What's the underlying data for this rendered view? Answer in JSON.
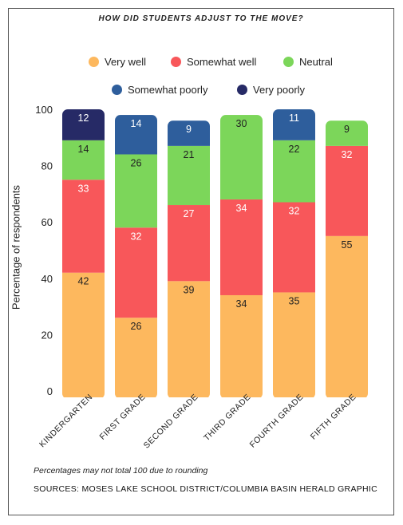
{
  "chart_data": {
    "type": "bar",
    "stacked": true,
    "title": "HOW DID STUDENTS ADJUST TO THE MOVE?",
    "ylabel": "Percentage of respondents",
    "xlabel": "",
    "ylim": [
      0,
      100
    ],
    "yticks": [
      0,
      20,
      40,
      60,
      80,
      100
    ],
    "grid": false,
    "legend_position": "top",
    "categories": [
      "KINDERGARTEN",
      "FIRST GRADE",
      "SECOND GRADE",
      "THIRD GRADE",
      "FOURTH GRADE",
      "FIFTH GRADE"
    ],
    "series": [
      {
        "name": "Very well",
        "color": "#FDB85E",
        "label_color": "#222222",
        "values": [
          42,
          26,
          39,
          34,
          35,
          55
        ]
      },
      {
        "name": "Somewhat well",
        "color": "#F8575A",
        "label_color": "#ffffff",
        "values": [
          33,
          32,
          27,
          34,
          32,
          32
        ]
      },
      {
        "name": "Neutral",
        "color": "#7CD65A",
        "label_color": "#222222",
        "values": [
          14,
          26,
          21,
          30,
          22,
          9
        ]
      },
      {
        "name": "Somewhat poorly",
        "color": "#2E5E9C",
        "label_color": "#ffffff",
        "values": [
          0,
          14,
          9,
          0,
          11,
          0
        ]
      },
      {
        "name": "Very poorly",
        "color": "#262A66",
        "label_color": "#ffffff",
        "values": [
          12,
          0,
          0,
          0,
          0,
          0
        ]
      }
    ],
    "data_labels": [
      [
        "42",
        "26",
        "39",
        "34",
        "35",
        "55"
      ],
      [
        "33",
        "32",
        "27",
        "34",
        "32",
        "32"
      ],
      [
        "14",
        "26",
        "21",
        "30",
        "22",
        "9"
      ],
      [
        "",
        "14",
        "9",
        "",
        "11",
        ""
      ],
      [
        "12",
        "",
        "",
        "",
        "",
        ""
      ]
    ],
    "note": "Percentages may not total 100 due to rounding",
    "source": "SOURCES: MOSES LAKE SCHOOL DISTRICT/COLUMBIA BASIN HERALD GRAPHIC"
  }
}
